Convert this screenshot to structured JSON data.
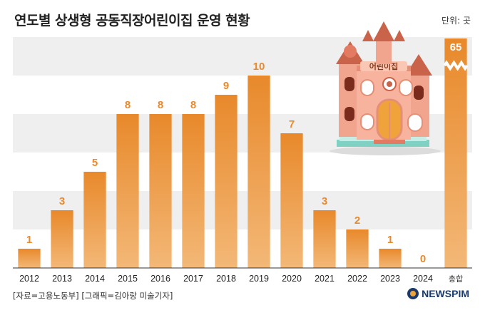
{
  "title": "연도별 상생형 공동직장어린이집 운영 현황",
  "unit": "단위: 곳",
  "source": "[자료=고용노동부] [그래픽=김아랑 미술기자]",
  "logo": "NEWSPIM",
  "illustration": {
    "sign": "어린이집"
  },
  "colors": {
    "bar": "#e8892b",
    "bar_light": "#f3b877",
    "band": "#efefef"
  },
  "chart_data": {
    "type": "bar",
    "title": "연도별 상생형 공동직장어린이집 운영 현황",
    "unit": "단위: 곳",
    "categories": [
      "2012",
      "2013",
      "2014",
      "2015",
      "2016",
      "2017",
      "2018",
      "2019",
      "2020",
      "2021",
      "2022",
      "2023",
      "2024"
    ],
    "values": [
      1,
      3,
      5,
      8,
      8,
      8,
      9,
      10,
      7,
      3,
      2,
      1,
      0
    ],
    "total": {
      "label": "총합",
      "value": 65,
      "axis_break": true
    },
    "ylim": [
      0,
      12
    ],
    "grid": "horizontal bands"
  }
}
